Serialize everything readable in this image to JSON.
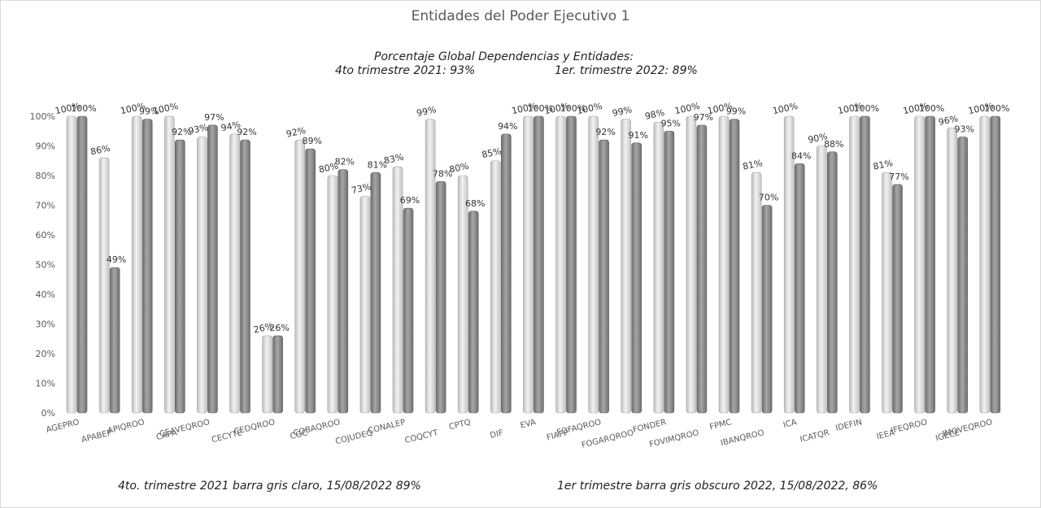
{
  "chart_data": {
    "type": "bar",
    "title": "Entidades del Poder Ejecutivo 1",
    "subtitle_line1": "Porcentaje Global  Dependencias y Entidades:",
    "subtitle_line2a": "4to trimestre 2021: 93%",
    "subtitle_line2b": "1er. trimestre 2022: 89%",
    "footnote_left": "4to. trimestre 2021 barra gris claro, 15/08/2022 89%",
    "footnote_right": "1er trimestre barra gris obscuro  2022,  15/08/2022, 86%",
    "ylim": [
      0,
      100
    ],
    "yticks": [
      "0%",
      "10%",
      "20%",
      "30%",
      "40%",
      "50%",
      "60%",
      "70%",
      "80%",
      "90%",
      "100%"
    ],
    "categories": [
      "AGEPRO",
      "APABEP",
      "APIQROO",
      "CAPA",
      "CEAVEQROO",
      "CECYTE",
      "CEDQROO",
      "CGC",
      "COBAQROO",
      "COJUDEQ",
      "CONALEP",
      "COQCYT",
      "CPTQ",
      "DIF",
      "EVA",
      "FIAFP",
      "FOFAQROO",
      "FOGARQROO",
      "FONDER",
      "FOVIMQROO",
      "FPMC",
      "IBANQROO",
      "ICA",
      "ICATQR",
      "IDEFIN",
      "IEEA",
      "IFEQROO",
      "IGECE",
      "IMOVEQROO"
    ],
    "series": [
      {
        "values": [
          100,
          86,
          100,
          100,
          93,
          94,
          26,
          92,
          80,
          73,
          83,
          99,
          80,
          85,
          100,
          100,
          100,
          99,
          98,
          100,
          100,
          81,
          100,
          90,
          100,
          81,
          100,
          96,
          100
        ],
        "labels": [
          "100%",
          "86%",
          "100%",
          "100%",
          "93%",
          "94%",
          "26%",
          "92%",
          "80%",
          "73%",
          "83%",
          "99%",
          "80%",
          "85%",
          "100%",
          "100%",
          "100%",
          "99%",
          "98%",
          "100%",
          "100%",
          "81%",
          "100%",
          "90%",
          "100%",
          "81%",
          "100%",
          "96%",
          "100%"
        ]
      },
      {
        "values": [
          100,
          49,
          99,
          92,
          97,
          92,
          26,
          89,
          82,
          81,
          69,
          78,
          68,
          94,
          100,
          100,
          92,
          91,
          95,
          97,
          99,
          70,
          84,
          88,
          100,
          77,
          100,
          93,
          100
        ],
        "labels": [
          "100%",
          "49%",
          "99%",
          "92%",
          "97%",
          "92%",
          "26%",
          "89%",
          "82%",
          "81%",
          "69%",
          "78%",
          "68%",
          "94%",
          "100%",
          "100%",
          "92%",
          "91%",
          "95%",
          "97%",
          "99%",
          "70%",
          "84%",
          "88%",
          "100%",
          "77%",
          "100%",
          "93%",
          "100%"
        ]
      }
    ],
    "grid": false,
    "colors": {
      "series1": "#e6e6e6",
      "series2": "#8c8c8c"
    }
  }
}
